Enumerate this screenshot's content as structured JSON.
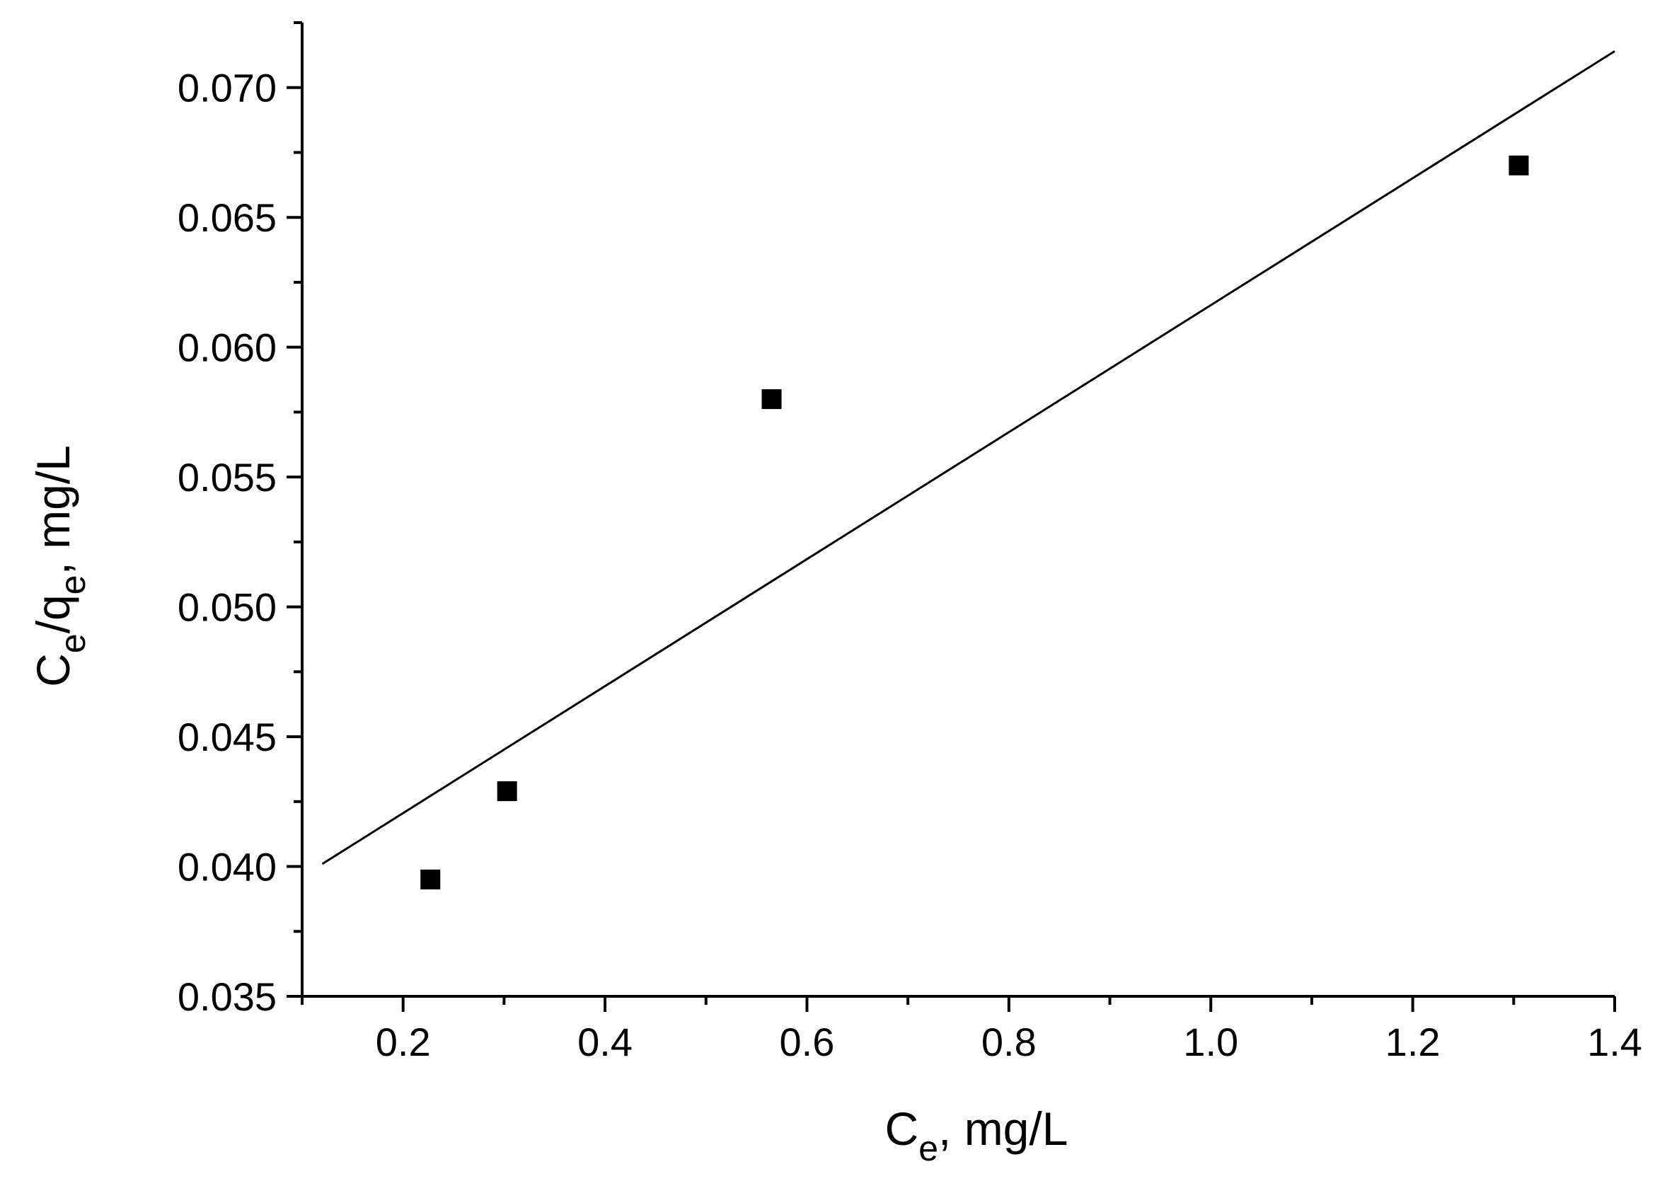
{
  "chart_data": {
    "type": "scatter",
    "title": "",
    "xlabel": {
      "main": "C",
      "sub": "e",
      "rest": ", mg/L"
    },
    "ylabel": {
      "part1": "C",
      "sub1": "e",
      "part2": "/q",
      "sub2": "e",
      "rest": ", mg/L"
    },
    "xlim": [
      0.1,
      1.4
    ],
    "ylim": [
      0.035,
      0.0725
    ],
    "x_ticks": [
      0.2,
      0.4,
      0.6,
      0.8,
      1.0,
      1.2,
      1.4
    ],
    "x_tick_labels": [
      "0.2",
      "0.4",
      "0.6",
      "0.8",
      "1.0",
      "1.2",
      "1.4"
    ],
    "x_minor_ticks": [
      0.1,
      0.3,
      0.5,
      0.7,
      0.9,
      1.1,
      1.3
    ],
    "y_ticks": [
      0.035,
      0.04,
      0.045,
      0.05,
      0.055,
      0.06,
      0.065,
      0.07
    ],
    "y_tick_labels": [
      "0.035",
      "0.040",
      "0.045",
      "0.050",
      "0.055",
      "0.060",
      "0.065",
      "0.070"
    ],
    "y_minor_ticks": [
      0.0375,
      0.0425,
      0.0475,
      0.0525,
      0.0575,
      0.0625,
      0.0675,
      0.0725
    ],
    "grid": false,
    "legend": "none",
    "series": [
      {
        "marker": "square",
        "color": "#000000",
        "x": [
          0.227,
          0.303,
          0.565,
          1.305
        ],
        "y": [
          0.0395,
          0.0429,
          0.058,
          0.067
        ]
      }
    ],
    "fit_line": {
      "color": "#000000",
      "x": [
        0.12,
        1.4
      ],
      "y": [
        0.0401,
        0.0714
      ]
    }
  }
}
